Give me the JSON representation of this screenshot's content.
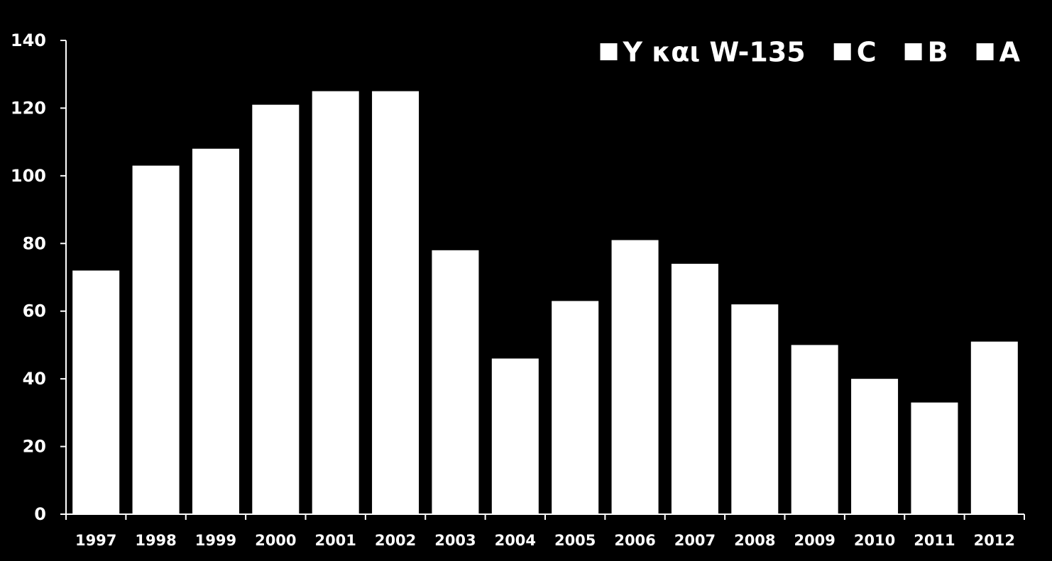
{
  "chart_data": {
    "type": "bar",
    "stacked": true,
    "categories": [
      "1997",
      "1998",
      "1999",
      "2000",
      "2001",
      "2002",
      "2003",
      "2004",
      "2005",
      "2006",
      "2007",
      "2008",
      "2009",
      "2010",
      "2011",
      "2012"
    ],
    "totals": [
      72,
      103,
      108,
      121,
      125,
      125,
      78,
      46,
      63,
      81,
      74,
      62,
      50,
      40,
      33,
      51
    ],
    "series": [
      {
        "name": "A",
        "color": "#ffffff"
      },
      {
        "name": "B",
        "color": "#ffffff"
      },
      {
        "name": "C",
        "color": "#ffffff"
      },
      {
        "name": "Y και W-135",
        "color": "#ffffff"
      }
    ],
    "legend_order": [
      "Y και W-135",
      "C",
      "B",
      "A"
    ],
    "legend_position": "top-right",
    "ylim": [
      0,
      140
    ],
    "yticks": [
      0,
      20,
      40,
      60,
      80,
      100,
      120,
      140
    ],
    "title": "",
    "xlabel": "",
    "ylabel": "",
    "grid": false,
    "colors": {
      "background": "#000000",
      "foreground": "#ffffff"
    }
  }
}
